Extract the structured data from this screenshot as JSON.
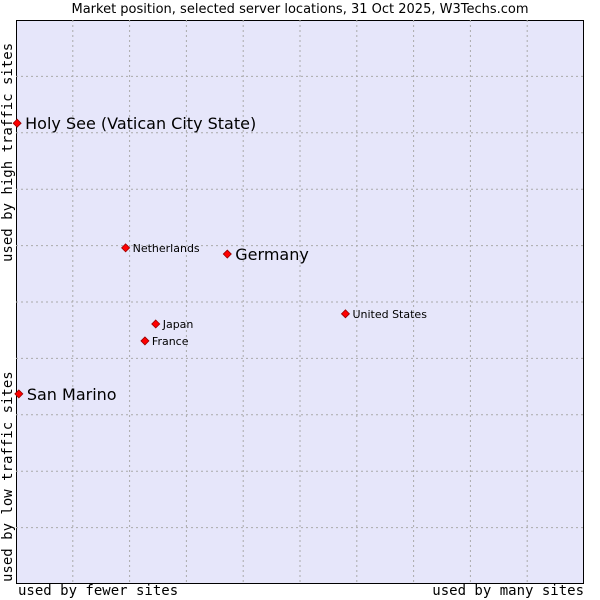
{
  "chart_data": {
    "type": "scatter",
    "title": "Market position, selected server locations, 31 Oct 2025, W3Techs.com",
    "xlabel_low": "used by fewer sites",
    "xlabel_high": "used by many sites",
    "ylabel_low": "used by low traffic sites",
    "ylabel_high": "used by high traffic sites",
    "xlim": [
      0,
      10
    ],
    "ylim": [
      0,
      10
    ],
    "grid": true,
    "points": [
      {
        "name": "Holy See (Vatican City State)",
        "x": 0.02,
        "y": 8.17,
        "emphasis": true
      },
      {
        "name": "Germany",
        "x": 3.72,
        "y": 5.85,
        "emphasis": true
      },
      {
        "name": "Netherlands",
        "x": 1.93,
        "y": 5.96,
        "emphasis": false
      },
      {
        "name": "United States",
        "x": 5.8,
        "y": 4.79,
        "emphasis": false
      },
      {
        "name": "Japan",
        "x": 2.46,
        "y": 4.61,
        "emphasis": false
      },
      {
        "name": "France",
        "x": 2.27,
        "y": 4.31,
        "emphasis": false
      },
      {
        "name": "San Marino",
        "x": 0.05,
        "y": 3.37,
        "emphasis": true
      }
    ]
  },
  "colors": {
    "plot_bg": "#e6e6fa",
    "grid": "#aaaaaa",
    "marker": "#ff0000",
    "marker_edge": "#990000"
  }
}
